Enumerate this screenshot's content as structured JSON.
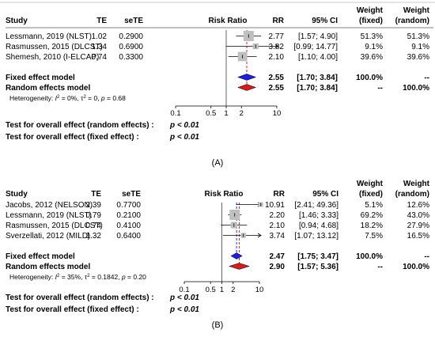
{
  "chart_data": [
    {
      "type": "forest",
      "caption": "(A)",
      "headers": {
        "study": "Study",
        "te": "TE",
        "sete": "seTE",
        "plot": "Risk Ratio",
        "rr": "RR",
        "ci": "95% CI",
        "weight_fixed_1": "Weight",
        "weight_fixed_2": "(fixed)",
        "weight_random_1": "Weight",
        "weight_random_2": "(random)"
      },
      "x_scale": "log",
      "xlim": [
        0.1,
        10
      ],
      "ticks": [
        {
          "value": 0.1,
          "label": "0.1"
        },
        {
          "value": 0.5,
          "label": "0.5"
        },
        {
          "value": 1,
          "label": "1"
        },
        {
          "value": 2,
          "label": "2"
        },
        {
          "value": 10,
          "label": "10"
        }
      ],
      "studies": [
        {
          "name": "Lessmann, 2019 (NLST)",
          "te": "1.02",
          "sete": "0.2900",
          "rr": 2.77,
          "lo": 1.57,
          "hi": 4.9,
          "rr_text": "2.77",
          "ci_text": "[1.57; 4.90]",
          "w_fixed": "51.3%",
          "w_random": "51.3%",
          "weight": 51.3
        },
        {
          "name": "Rasmussen, 2015 (DLCST)",
          "te": "1.34",
          "sete": "0.6900",
          "rr": 3.82,
          "lo": 0.99,
          "hi": 14.77,
          "rr_text": "3.82",
          "ci_text": "[0.99; 14.77]",
          "w_fixed": "9.1%",
          "w_random": "9.1%",
          "weight": 9.1
        },
        {
          "name": "Shemesh, 2010 (I-ELCAP)",
          "te": "0.74",
          "sete": "0.3300",
          "rr": 2.1,
          "lo": 1.1,
          "hi": 4.0,
          "rr_text": "2.10",
          "ci_text": "[1.10; 4.00]",
          "w_fixed": "39.6%",
          "w_random": "39.6%",
          "weight": 39.6
        }
      ],
      "fixed": {
        "label": "Fixed effect model",
        "rr": 2.55,
        "lo": 1.7,
        "hi": 3.84,
        "rr_text": "2.55",
        "ci_text": "[1.70; 3.84]",
        "w_fixed": "100.0%",
        "w_random": "--"
      },
      "random": {
        "label": "Random effects model",
        "rr": 2.55,
        "lo": 1.7,
        "hi": 3.84,
        "rr_text": "2.55",
        "ci_text": "[1.70; 3.84]",
        "w_fixed": "--",
        "w_random": "100.0%"
      },
      "heterogeneity": {
        "prefix": "Heterogeneity: ",
        "i2_label": "I",
        "i2_sup": "2",
        "i2_val": " = 0%, ",
        "tau_label": "τ",
        "tau_sup": "2",
        "tau_val": " = 0, ",
        "p_label": "p",
        "p_val": " = 0.68"
      },
      "tests": [
        {
          "label": "Test for overall effect (random effects) :",
          "value": "p < 0.01"
        },
        {
          "label": "Test for overall effect (fixed effect) :",
          "value": "p < 0.01"
        }
      ]
    },
    {
      "type": "forest",
      "caption": "(B)",
      "headers": {
        "study": "Study",
        "te": "TE",
        "sete": "seTE",
        "plot": "Risk Ratio",
        "rr": "RR",
        "ci": "95% CI",
        "weight_fixed_1": "Weight",
        "weight_fixed_2": "(fixed)",
        "weight_random_1": "Weight",
        "weight_random_2": "(random)"
      },
      "x_scale": "log",
      "xlim": [
        0.1,
        10
      ],
      "ticks": [
        {
          "value": 0.1,
          "label": "0.1"
        },
        {
          "value": 0.5,
          "label": "0.5"
        },
        {
          "value": 1,
          "label": "1"
        },
        {
          "value": 2,
          "label": "2"
        },
        {
          "value": 10,
          "label": "10"
        }
      ],
      "studies": [
        {
          "name": "Jacobs, 2012 (NELSON)",
          "te": "2.39",
          "sete": "0.7700",
          "rr": 10.91,
          "lo": 2.41,
          "hi": 49.36,
          "rr_text": "10.91",
          "ci_text": "[2.41; 49.36]",
          "w_fixed": "5.1%",
          "w_random": "12.6%",
          "weight": 5.1
        },
        {
          "name": "Lessmann, 2019 (NLST)",
          "te": "0.79",
          "sete": "0.2100",
          "rr": 2.2,
          "lo": 1.46,
          "hi": 3.33,
          "rr_text": "2.20",
          "ci_text": "[1.46; 3.33]",
          "w_fixed": "69.2%",
          "w_random": "43.0%",
          "weight": 69.2
        },
        {
          "name": "Rasmussen, 2015 (DLCST)",
          "te": "0.74",
          "sete": "0.4100",
          "rr": 2.1,
          "lo": 0.94,
          "hi": 4.68,
          "rr_text": "2.10",
          "ci_text": "[0.94; 4.68]",
          "w_fixed": "18.2%",
          "w_random": "27.9%",
          "weight": 18.2
        },
        {
          "name": "Sverzellati, 2012 (MILD)",
          "te": "1.32",
          "sete": "0.6400",
          "rr": 3.74,
          "lo": 1.07,
          "hi": 13.12,
          "rr_text": "3.74",
          "ci_text": "[1.07; 13.12]",
          "w_fixed": "7.5%",
          "w_random": "16.5%",
          "weight": 7.5
        }
      ],
      "fixed": {
        "label": "Fixed effect model",
        "rr": 2.47,
        "lo": 1.75,
        "hi": 3.47,
        "rr_text": "2.47",
        "ci_text": "[1.75; 3.47]",
        "w_fixed": "100.0%",
        "w_random": "--"
      },
      "random": {
        "label": "Random effects model",
        "rr": 2.9,
        "lo": 1.57,
        "hi": 5.36,
        "rr_text": "2.90",
        "ci_text": "[1.57; 5.36]",
        "w_fixed": "--",
        "w_random": "100.0%"
      },
      "heterogeneity": {
        "prefix": "Heterogeneity: ",
        "i2_label": "I",
        "i2_sup": "2",
        "i2_val": " = 35%, ",
        "tau_label": "τ",
        "tau_sup": "2",
        "tau_val": " = 0.1842, ",
        "p_label": "p",
        "p_val": " = 0.20"
      },
      "tests": [
        {
          "label": "Test for overall effect (random effects) :",
          "value": "p < 0.01"
        },
        {
          "label": "Test for overall effect (fixed effect) :",
          "value": "p < 0.01"
        }
      ]
    }
  ],
  "colors": {
    "square": "#bfbfbf",
    "fixed_diamond": "#1f1fd6",
    "random_diamond": "#d11f1f",
    "fixed_line": "#2b2bd9",
    "random_line": "#d92b2b",
    "line": "#000000"
  }
}
